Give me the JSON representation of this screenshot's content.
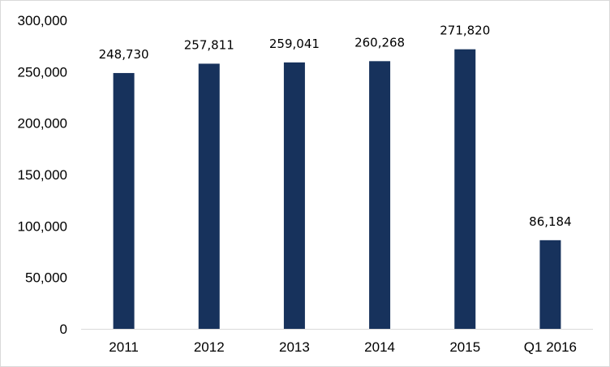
{
  "chart_data": {
    "type": "bar",
    "title": "",
    "xlabel": "",
    "ylabel": "",
    "categories": [
      "2011",
      "2012",
      "2013",
      "2014",
      "2015",
      "Q1 2016"
    ],
    "values": [
      248730,
      257811,
      259041,
      260268,
      271820,
      86184
    ],
    "data_labels": [
      "248,730",
      "257,811",
      "259,041",
      "260,268",
      "271,820",
      "86,184"
    ],
    "ylim": [
      0,
      300000
    ],
    "yticks": [
      0,
      50000,
      100000,
      150000,
      200000,
      250000,
      300000
    ],
    "ytick_labels": [
      "0",
      "50,000",
      "100,000",
      "150,000",
      "200,000",
      "250,000",
      "300,000"
    ],
    "grid": false,
    "legend": "none",
    "bar_color": "#17325c"
  }
}
